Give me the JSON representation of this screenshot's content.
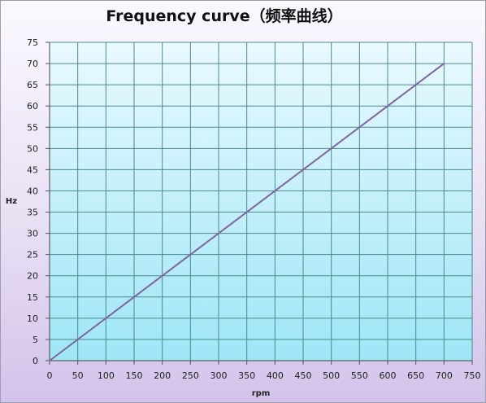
{
  "chart_data": {
    "type": "line",
    "title": "Frequency curve（频率曲线）",
    "xlabel": "rpm",
    "ylabel": "Hz",
    "xlim": [
      0,
      750
    ],
    "ylim": [
      0,
      75
    ],
    "x_ticks": [
      "0",
      "50",
      "100",
      "150",
      "200",
      "250",
      "300",
      "350",
      "400",
      "450",
      "500",
      "550",
      "600",
      "650",
      "700",
      "750"
    ],
    "y_ticks": [
      "0",
      "5",
      "10",
      "15",
      "20",
      "25",
      "30",
      "35",
      "40",
      "45",
      "50",
      "55",
      "60",
      "65",
      "70",
      "75"
    ],
    "grid": true,
    "legend": "none",
    "series": [
      {
        "x": [
          0,
          700
        ],
        "y": [
          0,
          70
        ],
        "color": "#8064a2"
      }
    ],
    "colors": {
      "plot_background_top": "#e9f9ff",
      "plot_background_bottom": "#9ee6f6",
      "grid": "#4d8a88",
      "line": "#8064a2"
    }
  }
}
